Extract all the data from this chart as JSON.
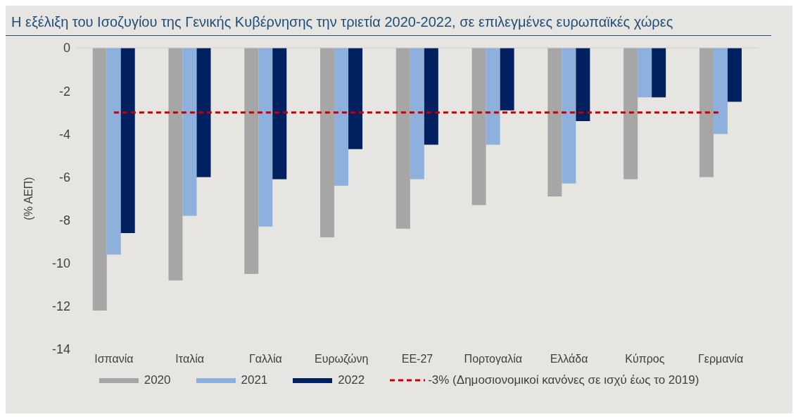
{
  "chart_data": {
    "type": "bar",
    "title": "Η εξέλιξη του Ισοζυγίου της Γενικής Κυβέρνησης την τριετία 2020-2022, σε επιλεγμένες ευρωπαϊκές χώρες",
    "ylabel": "(% ΑΕΠ)",
    "categories": [
      "Ισπανία",
      "Ιταλία",
      "Γαλλία",
      "Ευρωζώνη",
      "ΕΕ-27",
      "Πορτογαλία",
      "Ελλάδα",
      "Κύπρος",
      "Γερμανία"
    ],
    "series": [
      {
        "name": "2020",
        "color": "#a6a6a6",
        "values": [
          -12.2,
          -10.8,
          -10.5,
          -8.8,
          -8.4,
          -7.3,
          -6.9,
          -6.1,
          -6.0
        ]
      },
      {
        "name": "2021",
        "color": "#8eb0dc",
        "values": [
          -9.6,
          -7.8,
          -8.3,
          -6.4,
          -6.1,
          -4.5,
          -6.3,
          -2.3,
          -4.0
        ]
      },
      {
        "name": "2022",
        "color": "#002060",
        "values": [
          -8.6,
          -6.0,
          -6.1,
          -4.7,
          -4.5,
          -2.9,
          -3.4,
          -2.3,
          -2.5
        ]
      }
    ],
    "ylim": [
      -14,
      0
    ],
    "yticks": [
      -14,
      -12,
      -10,
      -8,
      -6,
      -4,
      -2,
      0
    ],
    "ref_lines": [
      {
        "axis": "y",
        "value": -3,
        "label": "-3% (Δημοσιονομικοί κανόνες σε ισχύ έως το 2019)",
        "color": "#c00000",
        "line_style": "dashed"
      }
    ],
    "grid": false,
    "legend": "bottom"
  }
}
